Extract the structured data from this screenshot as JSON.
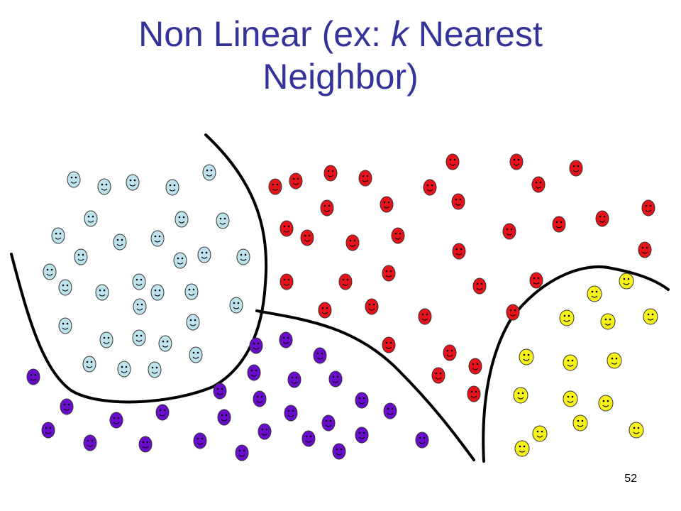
{
  "slide": {
    "title_line1_prefix": "Non Linear (ex: ",
    "title_italic": "k",
    "title_line1_suffix": " Nearest",
    "title_line2": "Neighbor)",
    "page_number": "52"
  },
  "colors": {
    "title": "#333399",
    "light_blue": "#bfe3ec",
    "red": "#e8121a",
    "purple": "#6a0ccc",
    "yellow": "#f7f21a",
    "boundary": "#000000"
  },
  "groups": [
    {
      "name": "light-blue",
      "color": "light_blue",
      "count": 38
    },
    {
      "name": "red",
      "color": "red",
      "count": 46
    },
    {
      "name": "purple",
      "color": "purple",
      "count": 34
    },
    {
      "name": "yellow",
      "color": "yellow",
      "count": 18
    }
  ]
}
